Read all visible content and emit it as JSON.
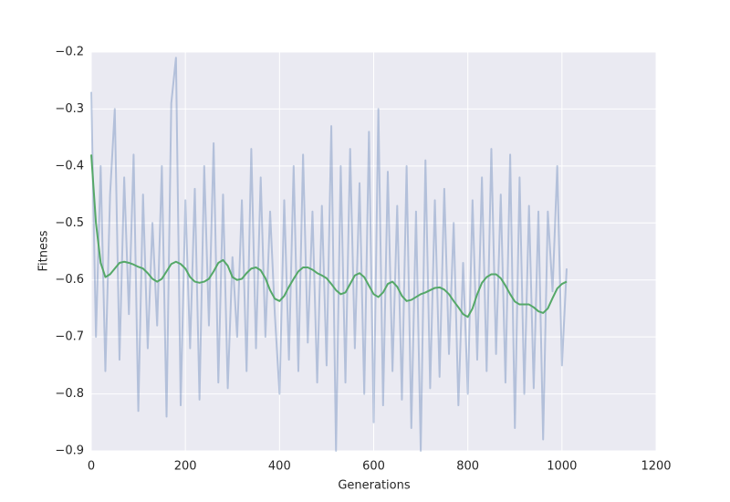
{
  "chart_data": {
    "type": "line",
    "xlabel": "Generations",
    "ylabel": "Fitness",
    "x": [
      0,
      10,
      20,
      30,
      40,
      50,
      60,
      70,
      80,
      90,
      100,
      110,
      120,
      130,
      140,
      150,
      160,
      170,
      180,
      190,
      200,
      210,
      220,
      230,
      240,
      250,
      260,
      270,
      280,
      290,
      300,
      310,
      320,
      330,
      340,
      350,
      360,
      370,
      380,
      390,
      400,
      410,
      420,
      430,
      440,
      450,
      460,
      470,
      480,
      490,
      500,
      510,
      520,
      530,
      540,
      550,
      560,
      570,
      580,
      590,
      600,
      610,
      620,
      630,
      640,
      650,
      660,
      670,
      680,
      690,
      700,
      710,
      720,
      730,
      740,
      750,
      760,
      770,
      780,
      790,
      800,
      810,
      820,
      830,
      840,
      850,
      860,
      870,
      880,
      890,
      900,
      910,
      920,
      930,
      940,
      950,
      960,
      970,
      980,
      990,
      1000,
      1010
    ],
    "series": [
      {
        "color": "#4c72b0",
        "alpha": 0.35,
        "values": [
          -0.27,
          -0.7,
          -0.4,
          -0.76,
          -0.45,
          -0.3,
          -0.74,
          -0.42,
          -0.66,
          -0.38,
          -0.83,
          -0.45,
          -0.72,
          -0.5,
          -0.68,
          -0.4,
          -0.84,
          -0.29,
          -0.21,
          -0.82,
          -0.46,
          -0.72,
          -0.44,
          -0.81,
          -0.4,
          -0.68,
          -0.36,
          -0.78,
          -0.45,
          -0.79,
          -0.56,
          -0.7,
          -0.46,
          -0.76,
          -0.37,
          -0.72,
          -0.42,
          -0.7,
          -0.48,
          -0.66,
          -0.8,
          -0.46,
          -0.74,
          -0.4,
          -0.76,
          -0.38,
          -0.71,
          -0.48,
          -0.78,
          -0.47,
          -0.75,
          -0.33,
          -0.9,
          -0.4,
          -0.78,
          -0.37,
          -0.72,
          -0.43,
          -0.8,
          -0.34,
          -0.85,
          -0.3,
          -0.82,
          -0.41,
          -0.76,
          -0.47,
          -0.81,
          -0.4,
          -0.86,
          -0.48,
          -0.9,
          -0.39,
          -0.79,
          -0.46,
          -0.77,
          -0.44,
          -0.73,
          -0.5,
          -0.82,
          -0.57,
          -0.8,
          -0.46,
          -0.74,
          -0.42,
          -0.76,
          -0.37,
          -0.73,
          -0.45,
          -0.78,
          -0.38,
          -0.86,
          -0.42,
          -0.8,
          -0.47,
          -0.79,
          -0.48,
          -0.88,
          -0.48,
          -0.62,
          -0.4,
          -0.75,
          -0.58
        ]
      },
      {
        "color": "#55a868",
        "alpha": 1,
        "values": [
          -0.38,
          -0.5,
          -0.57,
          -0.595,
          -0.59,
          -0.58,
          -0.57,
          -0.568,
          -0.57,
          -0.573,
          -0.577,
          -0.58,
          -0.588,
          -0.598,
          -0.603,
          -0.598,
          -0.585,
          -0.572,
          -0.568,
          -0.572,
          -0.58,
          -0.595,
          -0.603,
          -0.605,
          -0.603,
          -0.598,
          -0.585,
          -0.57,
          -0.565,
          -0.575,
          -0.595,
          -0.6,
          -0.598,
          -0.588,
          -0.58,
          -0.578,
          -0.583,
          -0.597,
          -0.618,
          -0.633,
          -0.637,
          -0.628,
          -0.612,
          -0.598,
          -0.585,
          -0.578,
          -0.578,
          -0.582,
          -0.588,
          -0.592,
          -0.597,
          -0.607,
          -0.618,
          -0.625,
          -0.622,
          -0.607,
          -0.592,
          -0.588,
          -0.595,
          -0.61,
          -0.625,
          -0.63,
          -0.622,
          -0.607,
          -0.603,
          -0.612,
          -0.628,
          -0.637,
          -0.635,
          -0.63,
          -0.625,
          -0.622,
          -0.618,
          -0.614,
          -0.613,
          -0.617,
          -0.625,
          -0.637,
          -0.648,
          -0.66,
          -0.665,
          -0.65,
          -0.625,
          -0.605,
          -0.595,
          -0.59,
          -0.59,
          -0.597,
          -0.61,
          -0.625,
          -0.638,
          -0.643,
          -0.643,
          -0.643,
          -0.648,
          -0.655,
          -0.658,
          -0.65,
          -0.632,
          -0.615,
          -0.607,
          -0.603
        ]
      }
    ],
    "xlim": [
      0,
      1200
    ],
    "xticks": [
      0,
      200,
      400,
      600,
      800,
      1000,
      1200
    ],
    "ylim": [
      -0.9,
      -0.2
    ],
    "yticks": [
      {
        "value": -0.9,
        "label": "−0.9"
      },
      {
        "value": -0.8,
        "label": "−0.8"
      },
      {
        "value": -0.7,
        "label": "−0.7"
      },
      {
        "value": -0.6,
        "label": "−0.6"
      },
      {
        "value": -0.5,
        "label": "−0.5"
      },
      {
        "value": -0.4,
        "label": "−0.4"
      },
      {
        "value": -0.3,
        "label": "−0.3"
      },
      {
        "value": -0.2,
        "label": "−0.2"
      }
    ],
    "grid": true,
    "background": "#eaeaf2"
  }
}
